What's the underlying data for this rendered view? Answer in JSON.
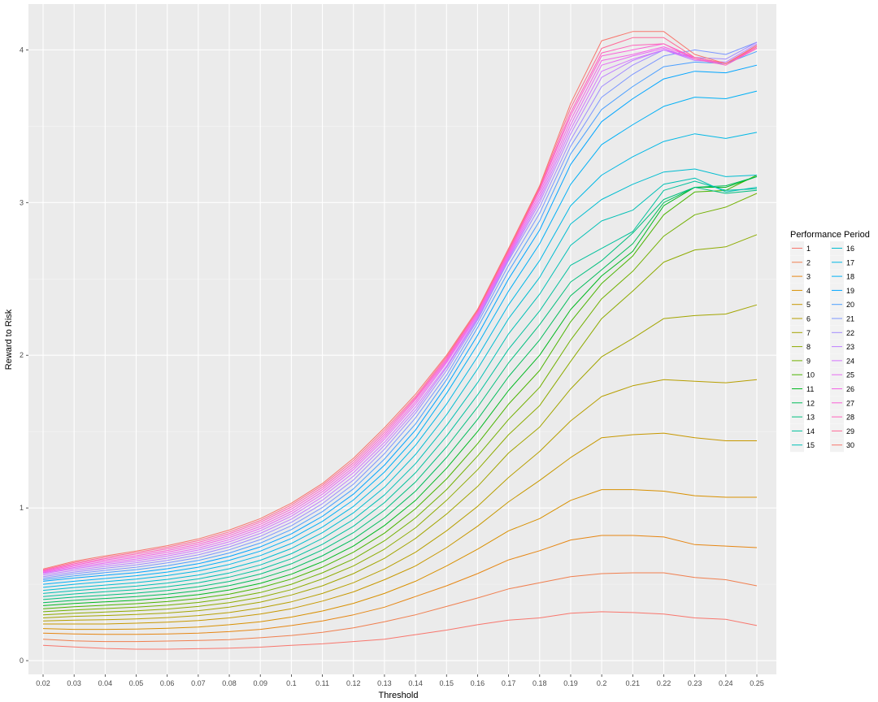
{
  "chart_data": {
    "type": "line",
    "title": "",
    "xlabel": "Threshold",
    "ylabel": "Reward to Risk",
    "legend_title": "Performance Period",
    "legend_position": "right",
    "grid": true,
    "x": [
      0.02,
      0.03,
      0.04,
      0.05,
      0.06,
      0.07,
      0.08,
      0.09,
      0.1,
      0.11,
      0.12,
      0.13,
      0.14,
      0.15,
      0.16,
      0.17,
      0.18,
      0.19,
      0.2,
      0.21,
      0.22,
      0.23,
      0.24,
      0.25
    ],
    "x_tick_labels": [
      "0.02",
      "0.03",
      "0.04",
      "0.05",
      "0.06",
      "0.07",
      "0.08",
      "0.09",
      "0.1",
      "0.11",
      "0.12",
      "0.13",
      "0.14",
      "0.15",
      "0.16",
      "0.17",
      "0.18",
      "0.19",
      "0.2",
      "0.21",
      "0.22",
      "0.23",
      "0.24",
      "0.25"
    ],
    "y_ticks": [
      0,
      1,
      2,
      3,
      4
    ],
    "ylim": [
      -0.09,
      4.3
    ],
    "series": [
      {
        "name": "1",
        "color": "#F8766D",
        "values": [
          0.1,
          0.09,
          0.08,
          0.075,
          0.075,
          0.078,
          0.082,
          0.088,
          0.1,
          0.11,
          0.125,
          0.14,
          0.17,
          0.2,
          0.235,
          0.265,
          0.28,
          0.31,
          0.32,
          0.315,
          0.305,
          0.28,
          0.27,
          0.23
        ]
      },
      {
        "name": "2",
        "color": "#F07F4F",
        "values": [
          0.14,
          0.13,
          0.125,
          0.125,
          0.128,
          0.132,
          0.138,
          0.15,
          0.165,
          0.185,
          0.215,
          0.255,
          0.3,
          0.355,
          0.41,
          0.47,
          0.51,
          0.55,
          0.57,
          0.575,
          0.575,
          0.545,
          0.53,
          0.49
        ]
      },
      {
        "name": "3",
        "color": "#E68613",
        "values": [
          0.18,
          0.175,
          0.172,
          0.172,
          0.175,
          0.18,
          0.19,
          0.205,
          0.23,
          0.26,
          0.3,
          0.35,
          0.42,
          0.49,
          0.57,
          0.66,
          0.72,
          0.79,
          0.82,
          0.82,
          0.81,
          0.76,
          0.75,
          0.74
        ]
      },
      {
        "name": "4",
        "color": "#D89000",
        "values": [
          0.21,
          0.205,
          0.205,
          0.207,
          0.212,
          0.22,
          0.235,
          0.255,
          0.285,
          0.325,
          0.375,
          0.44,
          0.52,
          0.62,
          0.73,
          0.85,
          0.93,
          1.05,
          1.12,
          1.12,
          1.11,
          1.08,
          1.07,
          1.07
        ]
      },
      {
        "name": "5",
        "color": "#C79800",
        "values": [
          0.24,
          0.24,
          0.24,
          0.245,
          0.252,
          0.262,
          0.28,
          0.305,
          0.34,
          0.39,
          0.45,
          0.53,
          0.62,
          0.74,
          0.88,
          1.04,
          1.18,
          1.33,
          1.46,
          1.48,
          1.49,
          1.46,
          1.44,
          1.44
        ]
      },
      {
        "name": "6",
        "color": "#B79F00",
        "values": [
          0.26,
          0.265,
          0.268,
          0.273,
          0.282,
          0.295,
          0.315,
          0.345,
          0.385,
          0.44,
          0.51,
          0.6,
          0.71,
          0.85,
          1.01,
          1.2,
          1.37,
          1.57,
          1.73,
          1.8,
          1.84,
          1.83,
          1.82,
          1.84
        ]
      },
      {
        "name": "7",
        "color": "#A3A500",
        "values": [
          0.28,
          0.29,
          0.295,
          0.302,
          0.312,
          0.327,
          0.35,
          0.383,
          0.43,
          0.49,
          0.57,
          0.67,
          0.8,
          0.96,
          1.14,
          1.36,
          1.53,
          1.78,
          1.99,
          2.11,
          2.24,
          2.26,
          2.27,
          2.33
        ]
      },
      {
        "name": "8",
        "color": "#8EAB00",
        "values": [
          0.3,
          0.31,
          0.318,
          0.326,
          0.338,
          0.355,
          0.38,
          0.415,
          0.465,
          0.535,
          0.62,
          0.73,
          0.87,
          1.05,
          1.25,
          1.48,
          1.67,
          1.96,
          2.24,
          2.42,
          2.61,
          2.69,
          2.71,
          2.79
        ]
      },
      {
        "name": "9",
        "color": "#72B000",
        "values": [
          0.32,
          0.332,
          0.341,
          0.35,
          0.363,
          0.381,
          0.408,
          0.446,
          0.5,
          0.575,
          0.665,
          0.785,
          0.935,
          1.12,
          1.34,
          1.58,
          1.79,
          2.1,
          2.37,
          2.55,
          2.78,
          2.92,
          2.97,
          3.06
        ]
      },
      {
        "name": "10",
        "color": "#4AB400",
        "values": [
          0.34,
          0.353,
          0.363,
          0.373,
          0.387,
          0.407,
          0.436,
          0.477,
          0.534,
          0.612,
          0.71,
          0.835,
          0.995,
          1.19,
          1.42,
          1.68,
          1.9,
          2.22,
          2.47,
          2.65,
          2.92,
          3.07,
          3.08,
          3.18
        ]
      },
      {
        "name": "11",
        "color": "#00B81F",
        "values": [
          0.36,
          0.374,
          0.385,
          0.396,
          0.411,
          0.432,
          0.463,
          0.506,
          0.566,
          0.648,
          0.75,
          0.885,
          1.05,
          1.26,
          1.5,
          1.77,
          2.0,
          2.3,
          2.52,
          2.68,
          2.98,
          3.1,
          3.1,
          3.17
        ]
      },
      {
        "name": "12",
        "color": "#00BC59",
        "values": [
          0.38,
          0.395,
          0.407,
          0.419,
          0.435,
          0.458,
          0.491,
          0.537,
          0.6,
          0.687,
          0.795,
          0.935,
          1.11,
          1.33,
          1.58,
          1.86,
          2.1,
          2.39,
          2.56,
          2.73,
          3.0,
          3.1,
          3.11,
          3.17
        ]
      },
      {
        "name": "13",
        "color": "#00BF7D",
        "values": [
          0.4,
          0.416,
          0.429,
          0.442,
          0.459,
          0.484,
          0.519,
          0.567,
          0.634,
          0.725,
          0.838,
          0.985,
          1.17,
          1.4,
          1.66,
          1.95,
          2.2,
          2.48,
          2.62,
          2.8,
          3.02,
          3.1,
          3.06,
          3.08
        ]
      },
      {
        "name": "14",
        "color": "#00C19C",
        "values": [
          0.42,
          0.437,
          0.451,
          0.465,
          0.484,
          0.51,
          0.547,
          0.597,
          0.667,
          0.762,
          0.88,
          1.035,
          1.23,
          1.47,
          1.74,
          2.04,
          2.29,
          2.59,
          2.7,
          2.81,
          3.08,
          3.14,
          3.08,
          3.09
        ]
      },
      {
        "name": "15",
        "color": "#00C0B5",
        "values": [
          0.44,
          0.458,
          0.473,
          0.488,
          0.508,
          0.535,
          0.574,
          0.627,
          0.7,
          0.8,
          0.924,
          1.085,
          1.29,
          1.54,
          1.82,
          2.14,
          2.4,
          2.72,
          2.88,
          2.95,
          3.12,
          3.16,
          3.07,
          3.1
        ]
      },
      {
        "name": "16",
        "color": "#00BDD0",
        "values": [
          0.46,
          0.479,
          0.495,
          0.511,
          0.532,
          0.561,
          0.602,
          0.657,
          0.734,
          0.838,
          0.968,
          1.135,
          1.35,
          1.61,
          1.91,
          2.24,
          2.51,
          2.86,
          3.02,
          3.12,
          3.2,
          3.22,
          3.17,
          3.18
        ]
      },
      {
        "name": "17",
        "color": "#00B8E5",
        "values": [
          0.48,
          0.5,
          0.517,
          0.534,
          0.557,
          0.587,
          0.63,
          0.688,
          0.767,
          0.875,
          1.01,
          1.185,
          1.41,
          1.68,
          1.99,
          2.33,
          2.62,
          2.98,
          3.18,
          3.3,
          3.4,
          3.45,
          3.42,
          3.46
        ]
      },
      {
        "name": "18",
        "color": "#00B0F6",
        "values": [
          0.5,
          0.52,
          0.538,
          0.556,
          0.58,
          0.612,
          0.657,
          0.717,
          0.8,
          0.912,
          1.052,
          1.235,
          1.46,
          1.75,
          2.07,
          2.42,
          2.73,
          3.12,
          3.38,
          3.51,
          3.63,
          3.69,
          3.68,
          3.73
        ]
      },
      {
        "name": "19",
        "color": "#00A5FF",
        "values": [
          0.52,
          0.541,
          0.559,
          0.577,
          0.602,
          0.635,
          0.682,
          0.745,
          0.83,
          0.945,
          1.09,
          1.28,
          1.51,
          1.8,
          2.13,
          2.5,
          2.82,
          3.25,
          3.53,
          3.68,
          3.81,
          3.86,
          3.85,
          3.9
        ]
      },
      {
        "name": "20",
        "color": "#4A9FFF",
        "values": [
          0.53,
          0.555,
          0.576,
          0.596,
          0.622,
          0.656,
          0.705,
          0.77,
          0.858,
          0.976,
          1.125,
          1.32,
          1.55,
          1.84,
          2.18,
          2.55,
          2.88,
          3.32,
          3.61,
          3.76,
          3.89,
          3.92,
          3.91,
          3.99
        ]
      },
      {
        "name": "21",
        "color": "#7C96FF",
        "values": [
          0.54,
          0.568,
          0.591,
          0.612,
          0.64,
          0.675,
          0.726,
          0.793,
          0.883,
          1.003,
          1.155,
          1.355,
          1.59,
          1.87,
          2.21,
          2.59,
          2.93,
          3.37,
          3.69,
          3.84,
          3.96,
          4.0,
          3.97,
          4.05
        ]
      },
      {
        "name": "22",
        "color": "#A18BFF",
        "values": [
          0.55,
          0.58,
          0.605,
          0.627,
          0.656,
          0.693,
          0.745,
          0.814,
          0.906,
          1.028,
          1.183,
          1.385,
          1.62,
          1.9,
          2.23,
          2.62,
          2.97,
          3.41,
          3.76,
          3.9,
          4.0,
          3.95,
          3.94,
          4.05
        ]
      },
      {
        "name": "23",
        "color": "#BF80FF",
        "values": [
          0.56,
          0.591,
          0.617,
          0.641,
          0.671,
          0.709,
          0.762,
          0.833,
          0.927,
          1.051,
          1.208,
          1.41,
          1.64,
          1.92,
          2.24,
          2.63,
          3.0,
          3.45,
          3.82,
          3.93,
          4.0,
          3.93,
          3.92,
          4.04
        ]
      },
      {
        "name": "24",
        "color": "#D575FE",
        "values": [
          0.57,
          0.602,
          0.629,
          0.654,
          0.685,
          0.724,
          0.778,
          0.85,
          0.946,
          1.072,
          1.23,
          1.43,
          1.66,
          1.93,
          2.25,
          2.64,
          3.02,
          3.48,
          3.86,
          3.94,
          4.0,
          3.94,
          3.91,
          4.03
        ]
      },
      {
        "name": "25",
        "color": "#E76BF3",
        "values": [
          0.575,
          0.61,
          0.639,
          0.665,
          0.697,
          0.737,
          0.792,
          0.865,
          0.962,
          1.09,
          1.25,
          1.45,
          1.68,
          1.95,
          2.26,
          2.65,
          3.04,
          3.51,
          3.9,
          3.96,
          4.01,
          3.94,
          3.91,
          4.02
        ]
      },
      {
        "name": "26",
        "color": "#F365E6",
        "values": [
          0.58,
          0.618,
          0.649,
          0.676,
          0.709,
          0.75,
          0.806,
          0.879,
          0.977,
          1.106,
          1.265,
          1.465,
          1.695,
          1.96,
          2.27,
          2.66,
          3.06,
          3.54,
          3.93,
          3.97,
          4.02,
          3.95,
          3.91,
          4.02
        ]
      },
      {
        "name": "27",
        "color": "#FB61D7",
        "values": [
          0.585,
          0.626,
          0.659,
          0.687,
          0.721,
          0.762,
          0.819,
          0.893,
          0.992,
          1.121,
          1.28,
          1.48,
          1.71,
          1.97,
          2.28,
          2.67,
          3.08,
          3.57,
          3.96,
          4.0,
          4.04,
          3.95,
          3.91,
          4.01
        ]
      },
      {
        "name": "28",
        "color": "#FF62BC",
        "values": [
          0.59,
          0.634,
          0.668,
          0.698,
          0.732,
          0.774,
          0.831,
          0.906,
          1.006,
          1.135,
          1.295,
          1.495,
          1.72,
          1.98,
          2.29,
          2.68,
          3.09,
          3.59,
          3.98,
          4.03,
          4.04,
          3.94,
          3.9,
          4.01
        ]
      },
      {
        "name": "29",
        "color": "#FF6A98",
        "values": [
          0.595,
          0.642,
          0.677,
          0.708,
          0.743,
          0.786,
          0.843,
          0.918,
          1.019,
          1.148,
          1.31,
          1.51,
          1.73,
          1.99,
          2.29,
          2.69,
          3.1,
          3.62,
          4.01,
          4.08,
          4.08,
          3.95,
          3.91,
          4.02
        ]
      },
      {
        "name": "30",
        "color": "#F8766D",
        "values": [
          0.6,
          0.65,
          0.686,
          0.717,
          0.753,
          0.797,
          0.855,
          0.93,
          1.031,
          1.16,
          1.325,
          1.525,
          1.745,
          2.0,
          2.3,
          2.7,
          3.11,
          3.65,
          4.06,
          4.12,
          4.12,
          3.97,
          3.91,
          4.03
        ]
      }
    ]
  }
}
